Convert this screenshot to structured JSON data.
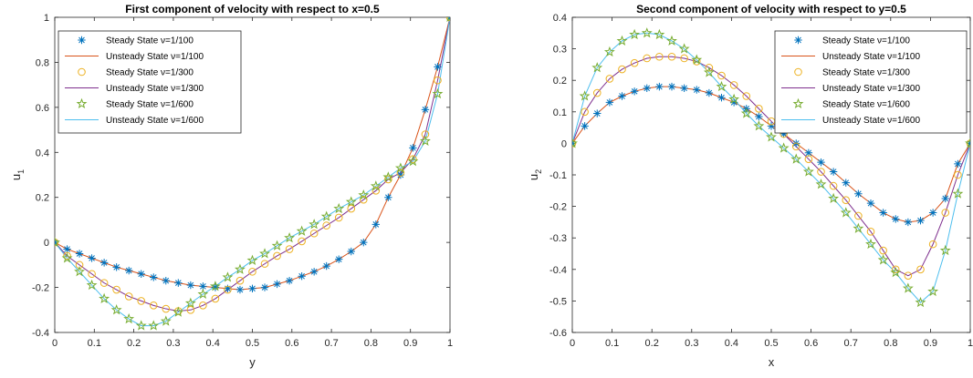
{
  "colors": {
    "steady_100": "#0072BD",
    "unsteady_100": "#D95319",
    "steady_300": "#EDB120",
    "unsteady_300": "#7E2F8E",
    "steady_600": "#77AC30",
    "unsteady_600": "#4DBEEE"
  },
  "chart_data": [
    {
      "type": "line",
      "title": "First component of velocity with respect to x=0.5",
      "xlabel": "y",
      "ylabel": "u",
      "ylabel_sub": "1",
      "xlim": [
        0,
        1
      ],
      "ylim": [
        -0.4,
        1
      ],
      "xticks": [
        "0",
        "0.1",
        "0.2",
        "0.3",
        "0.4",
        "0.5",
        "0.6",
        "0.7",
        "0.8",
        "0.9",
        "1"
      ],
      "yticks": [
        "-0.4",
        "-0.2",
        "0",
        "0.2",
        "0.4",
        "0.6",
        "0.8",
        "1"
      ],
      "grid": false,
      "legend_position": "top-left",
      "x": [
        0,
        0.03125,
        0.0625,
        0.09375,
        0.125,
        0.15625,
        0.1875,
        0.21875,
        0.25,
        0.28125,
        0.3125,
        0.34375,
        0.375,
        0.40625,
        0.4375,
        0.46875,
        0.5,
        0.53125,
        0.5625,
        0.59375,
        0.625,
        0.65625,
        0.6875,
        0.71875,
        0.75,
        0.78125,
        0.8125,
        0.84375,
        0.875,
        0.90625,
        0.9375,
        0.96875,
        1
      ],
      "series": [
        {
          "name": "Steady State ν=1/100",
          "style": "marker",
          "marker": "asterisk",
          "color_key": "steady_100",
          "values": [
            0,
            -0.03,
            -0.05,
            -0.07,
            -0.09,
            -0.11,
            -0.125,
            -0.14,
            -0.155,
            -0.17,
            -0.18,
            -0.19,
            -0.195,
            -0.2,
            -0.205,
            -0.21,
            -0.205,
            -0.2,
            -0.185,
            -0.17,
            -0.15,
            -0.13,
            -0.105,
            -0.075,
            -0.04,
            0,
            0.08,
            0.2,
            0.3,
            0.42,
            0.59,
            0.78,
            1
          ]
        },
        {
          "name": "Unsteady State ν=1/100",
          "style": "line",
          "color_key": "unsteady_100",
          "values": [
            0,
            -0.03,
            -0.05,
            -0.07,
            -0.09,
            -0.11,
            -0.125,
            -0.14,
            -0.155,
            -0.17,
            -0.18,
            -0.19,
            -0.195,
            -0.2,
            -0.205,
            -0.21,
            -0.205,
            -0.2,
            -0.185,
            -0.17,
            -0.15,
            -0.13,
            -0.105,
            -0.075,
            -0.04,
            0,
            0.08,
            0.2,
            0.3,
            0.42,
            0.59,
            0.78,
            1
          ]
        },
        {
          "name": "Steady State ν=1/300",
          "style": "marker",
          "marker": "circle",
          "color_key": "steady_300",
          "values": [
            0,
            -0.06,
            -0.1,
            -0.14,
            -0.18,
            -0.21,
            -0.24,
            -0.26,
            -0.28,
            -0.295,
            -0.305,
            -0.3,
            -0.28,
            -0.25,
            -0.21,
            -0.17,
            -0.13,
            -0.095,
            -0.06,
            -0.03,
            0.005,
            0.04,
            0.075,
            0.11,
            0.15,
            0.19,
            0.23,
            0.28,
            0.31,
            0.37,
            0.48,
            0.72,
            1
          ]
        },
        {
          "name": "Unsteady State ν=1/300",
          "style": "line",
          "color_key": "unsteady_300",
          "values": [
            0,
            -0.06,
            -0.1,
            -0.14,
            -0.18,
            -0.21,
            -0.24,
            -0.26,
            -0.28,
            -0.295,
            -0.305,
            -0.3,
            -0.28,
            -0.25,
            -0.21,
            -0.17,
            -0.13,
            -0.095,
            -0.06,
            -0.03,
            0.005,
            0.04,
            0.075,
            0.11,
            0.15,
            0.19,
            0.23,
            0.28,
            0.31,
            0.37,
            0.48,
            0.72,
            1
          ]
        },
        {
          "name": "Steady State ν=1/600",
          "style": "marker",
          "marker": "star",
          "color_key": "steady_600",
          "values": [
            0,
            -0.07,
            -0.13,
            -0.19,
            -0.25,
            -0.3,
            -0.34,
            -0.37,
            -0.37,
            -0.35,
            -0.31,
            -0.27,
            -0.23,
            -0.195,
            -0.155,
            -0.12,
            -0.08,
            -0.05,
            -0.015,
            0.02,
            0.05,
            0.08,
            0.115,
            0.15,
            0.18,
            0.21,
            0.25,
            0.29,
            0.33,
            0.36,
            0.45,
            0.66,
            1
          ]
        },
        {
          "name": "Unsteady State ν=1/600",
          "style": "line",
          "color_key": "unsteady_600",
          "values": [
            0,
            -0.07,
            -0.13,
            -0.19,
            -0.25,
            -0.3,
            -0.34,
            -0.37,
            -0.37,
            -0.35,
            -0.31,
            -0.27,
            -0.23,
            -0.195,
            -0.155,
            -0.12,
            -0.08,
            -0.05,
            -0.015,
            0.02,
            0.05,
            0.08,
            0.115,
            0.15,
            0.18,
            0.21,
            0.25,
            0.29,
            0.33,
            0.36,
            0.45,
            0.66,
            1
          ]
        }
      ]
    },
    {
      "type": "line",
      "title": "Second component of velocity with respect to y=0.5",
      "xlabel": "x",
      "ylabel": "u",
      "ylabel_sub": "2",
      "xlim": [
        0,
        1
      ],
      "ylim": [
        -0.6,
        0.4
      ],
      "xticks": [
        "0",
        "0.1",
        "0.2",
        "0.3",
        "0.4",
        "0.5",
        "0.6",
        "0.7",
        "0.8",
        "0.9",
        "1"
      ],
      "yticks": [
        "-0.6",
        "-0.5",
        "-0.4",
        "-0.3",
        "-0.2",
        "-0.1",
        "0",
        "0.1",
        "0.2",
        "0.3",
        "0.4"
      ],
      "grid": false,
      "legend_position": "top-right",
      "x": [
        0,
        0.03125,
        0.0625,
        0.09375,
        0.125,
        0.15625,
        0.1875,
        0.21875,
        0.25,
        0.28125,
        0.3125,
        0.34375,
        0.375,
        0.40625,
        0.4375,
        0.46875,
        0.5,
        0.53125,
        0.5625,
        0.59375,
        0.625,
        0.65625,
        0.6875,
        0.71875,
        0.75,
        0.78125,
        0.8125,
        0.84375,
        0.875,
        0.90625,
        0.9375,
        0.96875,
        1
      ],
      "series": [
        {
          "name": "Steady State ν=1/100",
          "style": "marker",
          "marker": "asterisk",
          "color_key": "steady_100",
          "values": [
            0,
            0.055,
            0.095,
            0.13,
            0.15,
            0.165,
            0.175,
            0.18,
            0.18,
            0.175,
            0.17,
            0.16,
            0.145,
            0.13,
            0.11,
            0.085,
            0.055,
            0.03,
            0,
            -0.03,
            -0.06,
            -0.09,
            -0.125,
            -0.16,
            -0.19,
            -0.22,
            -0.24,
            -0.25,
            -0.245,
            -0.22,
            -0.175,
            -0.065,
            0
          ]
        },
        {
          "name": "Unsteady State ν=1/100",
          "style": "line",
          "color_key": "unsteady_100",
          "values": [
            0,
            0.055,
            0.095,
            0.13,
            0.15,
            0.165,
            0.175,
            0.18,
            0.18,
            0.175,
            0.17,
            0.16,
            0.145,
            0.13,
            0.11,
            0.085,
            0.055,
            0.03,
            0,
            -0.03,
            -0.06,
            -0.09,
            -0.125,
            -0.16,
            -0.19,
            -0.22,
            -0.24,
            -0.25,
            -0.245,
            -0.22,
            -0.175,
            -0.065,
            0
          ]
        },
        {
          "name": "Steady State ν=1/300",
          "style": "marker",
          "marker": "circle",
          "color_key": "steady_300",
          "values": [
            0,
            0.1,
            0.16,
            0.205,
            0.235,
            0.255,
            0.27,
            0.275,
            0.275,
            0.27,
            0.26,
            0.24,
            0.215,
            0.185,
            0.15,
            0.11,
            0.07,
            0.03,
            -0.01,
            -0.05,
            -0.09,
            -0.135,
            -0.18,
            -0.23,
            -0.28,
            -0.34,
            -0.4,
            -0.42,
            -0.4,
            -0.32,
            -0.22,
            -0.1,
            0
          ]
        },
        {
          "name": "Unsteady State ν=1/300",
          "style": "line",
          "color_key": "unsteady_300",
          "values": [
            0,
            0.1,
            0.16,
            0.205,
            0.235,
            0.255,
            0.27,
            0.275,
            0.275,
            0.27,
            0.26,
            0.24,
            0.215,
            0.185,
            0.15,
            0.11,
            0.07,
            0.03,
            -0.01,
            -0.05,
            -0.09,
            -0.135,
            -0.18,
            -0.23,
            -0.28,
            -0.34,
            -0.4,
            -0.42,
            -0.4,
            -0.32,
            -0.22,
            -0.1,
            0
          ]
        },
        {
          "name": "Steady State ν=1/600",
          "style": "marker",
          "marker": "star",
          "color_key": "steady_600",
          "values": [
            0,
            0.15,
            0.24,
            0.29,
            0.325,
            0.345,
            0.35,
            0.345,
            0.325,
            0.3,
            0.265,
            0.225,
            0.18,
            0.14,
            0.095,
            0.055,
            0.02,
            -0.015,
            -0.05,
            -0.09,
            -0.13,
            -0.175,
            -0.22,
            -0.27,
            -0.32,
            -0.37,
            -0.41,
            -0.46,
            -0.505,
            -0.47,
            -0.34,
            -0.16,
            0
          ]
        },
        {
          "name": "Unsteady State ν=1/600",
          "style": "line",
          "color_key": "unsteady_600",
          "values": [
            0,
            0.15,
            0.24,
            0.29,
            0.325,
            0.345,
            0.35,
            0.345,
            0.325,
            0.3,
            0.265,
            0.225,
            0.18,
            0.14,
            0.095,
            0.055,
            0.02,
            -0.015,
            -0.05,
            -0.09,
            -0.13,
            -0.175,
            -0.22,
            -0.27,
            -0.32,
            -0.37,
            -0.41,
            -0.46,
            -0.505,
            -0.47,
            -0.34,
            -0.16,
            0
          ]
        }
      ]
    }
  ]
}
